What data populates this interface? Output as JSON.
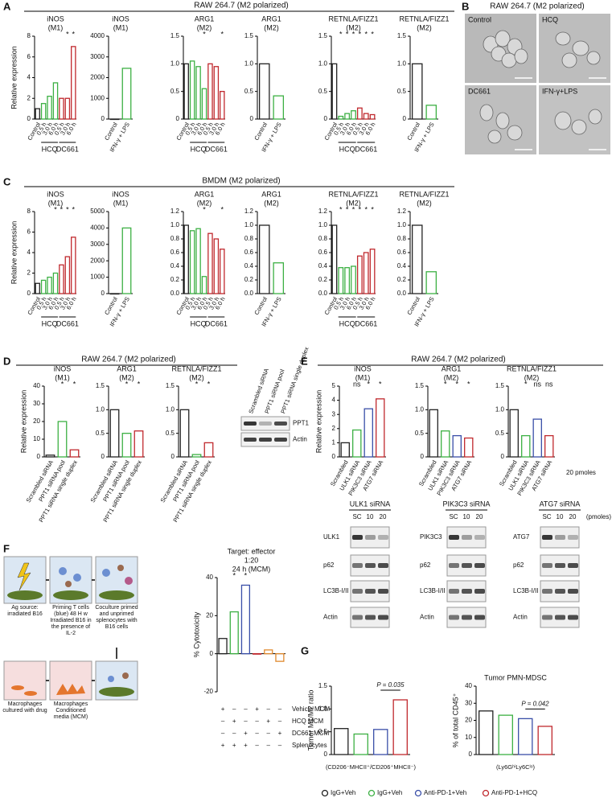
{
  "figure": {
    "panel_labels": [
      "A",
      "B",
      "C",
      "D",
      "E",
      "F",
      "G"
    ],
    "headers": {
      "a": "RAW 264.7 (M2 polarized)",
      "b": "RAW 264.7 (M2 polarized)",
      "c": "BMDM (M2 polarized)",
      "d": "RAW 264.7 (M2 polarized)",
      "e": "RAW 264.7 (M2 polarized)"
    },
    "micrographs": [
      "Control",
      "HCQ",
      "DC661",
      "IFN-γ+LPS"
    ],
    "blot_d": {
      "lanes": [
        "Scrambled siRNA",
        "PPT1 siRNA pool",
        "PPT1 siRNA single duplex"
      ],
      "bands": [
        "PPT1",
        "Actin"
      ]
    },
    "e_note": "20 pmoles",
    "blot_e": {
      "unit": "(pmoles)",
      "blots": [
        {
          "title": "ULK1 siRNA",
          "lanes": [
            "SC",
            "10",
            "20"
          ],
          "bands": [
            "ULK1",
            "p62",
            "LC3B-I/II",
            "Actin"
          ]
        },
        {
          "title": "PIK3C3 siRNA",
          "lanes": [
            "SC",
            "10",
            "20"
          ],
          "bands": [
            "PIK3C3",
            "p62",
            "LC3B-I/II",
            "Actin"
          ]
        },
        {
          "title": "ATG7 siRNA",
          "lanes": [
            "SC",
            "10",
            "20"
          ],
          "bands": [
            "ATG7",
            "p62",
            "LC3B-I/II",
            "Actin"
          ]
        }
      ]
    },
    "schematic": [
      "Ag source: irradiated B16",
      "Priming T cells (blue) 48 H w Irradiated B16 in the presence of IL-2",
      "Coculture primed and unprimed splenocytes with B16 cells",
      "Macrophages cultured with drug",
      "Macrophages Conditioned media (MCM)"
    ],
    "legend": [
      {
        "name": "IgG+Veh",
        "color": "#222222"
      },
      {
        "name": "IgG+Veh",
        "color": "#3cb043"
      },
      {
        "name": "Anti-PD-1+Veh",
        "color": "#3a4fa8"
      },
      {
        "name": "Anti-PD-1+HCQ",
        "color": "#c0282d"
      }
    ]
  },
  "chart_data": [
    {
      "type": "bar",
      "title": [
        "iNOS",
        "(M1)"
      ],
      "ylabel": "Relative expression",
      "categories": [
        "Control",
        "0.5 h",
        "3.0 h",
        "6.0 h",
        "0.5 h",
        "3.0 h",
        "6.0 h"
      ],
      "groups": [
        null,
        "HCQ",
        "HCQ",
        "HCQ",
        "DC661",
        "DC661",
        "DC661"
      ],
      "colors": [
        "#222222",
        "#3cb043",
        "#3cb043",
        "#3cb043",
        "#c0282d",
        "#c0282d",
        "#c0282d"
      ],
      "values": [
        1,
        1.5,
        2.2,
        3.5,
        2,
        2,
        7
      ],
      "significance": [
        null,
        null,
        null,
        null,
        null,
        "*",
        "*"
      ],
      "ylim": [
        0,
        8
      ],
      "yticks": [
        0,
        2,
        4,
        6,
        8
      ]
    },
    {
      "type": "bar",
      "title": [
        "iNOS",
        "(M1)"
      ],
      "categories": [
        "Control",
        "IFN-γ + LPS"
      ],
      "colors": [
        "#222222",
        "#3cb043"
      ],
      "values": [
        1,
        2450
      ],
      "ylim": [
        0,
        4000
      ],
      "yticks": [
        0,
        1000,
        2000,
        3000,
        4000
      ]
    },
    {
      "type": "bar",
      "title": [
        "ARG1",
        "(M2)"
      ],
      "categories": [
        "Control",
        "0.5 h",
        "3.0 h",
        "6.0 h",
        "0.5 h",
        "3.0 h",
        "6.0 h"
      ],
      "groups": [
        null,
        "HCQ",
        "HCQ",
        "HCQ",
        "DC661",
        "DC661",
        "DC661"
      ],
      "colors": [
        "#222222",
        "#3cb043",
        "#3cb043",
        "#3cb043",
        "#c0282d",
        "#c0282d",
        "#c0282d"
      ],
      "values": [
        1,
        1.05,
        0.95,
        0.55,
        1,
        0.95,
        0.5
      ],
      "significance": [
        null,
        null,
        null,
        "*",
        null,
        null,
        "*"
      ],
      "ylim": [
        0,
        1.5
      ],
      "yticks": [
        0,
        0.5,
        {
          "value": 1,
          "label": "1.0"
        },
        1.5
      ]
    },
    {
      "type": "bar",
      "title": [
        "ARG1",
        "(M2)"
      ],
      "categories": [
        "Control",
        "IFN-γ + LPS"
      ],
      "colors": [
        "#222222",
        "#3cb043"
      ],
      "values": [
        1,
        0.42
      ],
      "ylim": [
        0,
        1.5
      ],
      "yticks": [
        0,
        0.5,
        {
          "value": 1,
          "label": "1.0"
        },
        1.5
      ]
    },
    {
      "type": "bar",
      "title": [
        "RETNLA/FIZZ1",
        "(M2)"
      ],
      "categories": [
        "Control",
        "0.5 h",
        "3.0 h",
        "6.0 h",
        "0.5 h",
        "3.0 h",
        "6.0 h"
      ],
      "groups": [
        null,
        "HCQ",
        "HCQ",
        "HCQ",
        "DC661",
        "DC661",
        "DC661"
      ],
      "colors": [
        "#222222",
        "#3cb043",
        "#3cb043",
        "#3cb043",
        "#c0282d",
        "#c0282d",
        "#c0282d"
      ],
      "values": [
        1,
        0.05,
        0.1,
        0.15,
        0.2,
        0.1,
        0.08
      ],
      "significance": [
        null,
        "*",
        "*",
        "*",
        "*",
        "*",
        "*"
      ],
      "ylim": [
        0,
        1.5
      ],
      "yticks": [
        0,
        0.5,
        {
          "value": 1,
          "label": "1.0"
        },
        1.5
      ]
    },
    {
      "type": "bar",
      "title": [
        "RETNLA/FIZZ1",
        "(M2)"
      ],
      "categories": [
        "Control",
        "IFN-γ + LPS"
      ],
      "colors": [
        "#222222",
        "#3cb043"
      ],
      "values": [
        1,
        0.25
      ],
      "ylim": [
        0,
        1.5
      ],
      "yticks": [
        0,
        0.5,
        {
          "value": 1,
          "label": "1.0"
        },
        1.5
      ]
    },
    {
      "type": "bar",
      "title": [
        "iNOS",
        "(M1)"
      ],
      "ylabel": "Relative expression",
      "categories": [
        "Control",
        "0.5 h",
        "3.0 h",
        "6.0 h",
        "0.5 h",
        "3.0 h",
        "6.0 h"
      ],
      "groups": [
        null,
        "HCQ",
        "HCQ",
        "HCQ",
        "DC661",
        "DC661",
        "DC661"
      ],
      "colors": [
        "#222222",
        "#3cb043",
        "#3cb043",
        "#3cb043",
        "#c0282d",
        "#c0282d",
        "#c0282d"
      ],
      "values": [
        1,
        1.3,
        1.6,
        2,
        2.8,
        3.6,
        5.5
      ],
      "significance": [
        null,
        null,
        null,
        "*",
        "*",
        "*",
        "*"
      ],
      "ylim": [
        0,
        8
      ],
      "yticks": [
        0,
        2,
        4,
        6,
        8
      ]
    },
    {
      "type": "bar",
      "title": [
        "iNOS",
        "(M1)"
      ],
      "categories": [
        "Control",
        "IFN-γ + LPS"
      ],
      "colors": [
        "#222222",
        "#3cb043"
      ],
      "values": [
        1,
        4000
      ],
      "ylim": [
        0,
        5000
      ],
      "yticks": [
        0,
        1000,
        2000,
        3000,
        4000,
        5000
      ]
    },
    {
      "type": "bar",
      "title": [
        "ARG1",
        "(M2)"
      ],
      "categories": [
        "Control",
        "0.5 h",
        "3.0 h",
        "6.0 h",
        "0.5 h",
        "3.0 h",
        "6.0 h"
      ],
      "groups": [
        null,
        "HCQ",
        "HCQ",
        "HCQ",
        "DC661",
        "DC661",
        "DC661"
      ],
      "colors": [
        "#222222",
        "#3cb043",
        "#3cb043",
        "#3cb043",
        "#c0282d",
        "#c0282d",
        "#c0282d"
      ],
      "values": [
        1,
        0.92,
        0.95,
        0.25,
        0.88,
        0.8,
        0.65
      ],
      "significance": [
        null,
        null,
        null,
        "*",
        null,
        null,
        "*"
      ],
      "ylim": [
        0,
        1.2
      ],
      "yticks": [
        {
          "value": 0,
          "label": "0.0"
        },
        0.2,
        0.4,
        0.6,
        0.8,
        {
          "value": 1,
          "label": "1.0"
        },
        1.2
      ]
    },
    {
      "type": "bar",
      "title": [
        "ARG1",
        "(M2)"
      ],
      "categories": [
        "Control",
        "IFN-γ + LPS"
      ],
      "colors": [
        "#222222",
        "#3cb043"
      ],
      "values": [
        1,
        0.45
      ],
      "ylim": [
        0,
        1.2
      ],
      "yticks": [
        {
          "value": 0,
          "label": "0.0"
        },
        0.2,
        0.4,
        0.6,
        0.8,
        {
          "value": 1,
          "label": "1.0"
        },
        1.2
      ]
    },
    {
      "type": "bar",
      "title": [
        "RETNLA/FIZZ1",
        "(M2)"
      ],
      "categories": [
        "Control",
        "0.5 h",
        "3.0 h",
        "6.0 h",
        "0.5 h",
        "3.0 h",
        "6.0 h"
      ],
      "groups": [
        null,
        "HCQ",
        "HCQ",
        "HCQ",
        "DC661",
        "DC661",
        "DC661"
      ],
      "colors": [
        "#222222",
        "#3cb043",
        "#3cb043",
        "#3cb043",
        "#c0282d",
        "#c0282d",
        "#c0282d"
      ],
      "values": [
        1,
        0.38,
        0.38,
        0.4,
        0.55,
        0.6,
        0.65
      ],
      "significance": [
        null,
        "*",
        "*",
        "*",
        "*",
        "*",
        "*"
      ],
      "ylim": [
        0,
        1.2
      ],
      "yticks": [
        {
          "value": 0,
          "label": "0.0"
        },
        0.2,
        0.4,
        0.6,
        0.8,
        {
          "value": 1,
          "label": "1.0"
        },
        1.2
      ]
    },
    {
      "type": "bar",
      "title": [
        "RETNLA/FIZZ1",
        "(M2)"
      ],
      "categories": [
        "Control",
        "IFN-γ + LPS"
      ],
      "colors": [
        "#222222",
        "#3cb043"
      ],
      "values": [
        1,
        0.32
      ],
      "ylim": [
        0,
        1.2
      ],
      "yticks": [
        {
          "value": 0,
          "label": "0.0"
        },
        0.2,
        0.4,
        0.6,
        0.8,
        {
          "value": 1,
          "label": "1.0"
        },
        1.2
      ]
    },
    {
      "type": "bar",
      "title": [
        "iNOS",
        "(M1)"
      ],
      "ylabel": "Relative expression",
      "categories": [
        "Scrambled siRNA",
        "PPT1 siRNA pool",
        "PPT1 siRNA single duplex"
      ],
      "colors": [
        "#222222",
        "#3cb043",
        "#c0282d"
      ],
      "values": [
        1,
        20,
        4
      ],
      "significance": [
        null,
        "*",
        "*"
      ],
      "ylim": [
        0,
        40
      ],
      "yticks": [
        0,
        10,
        20,
        30,
        40
      ]
    },
    {
      "type": "bar",
      "title": [
        "ARG1",
        "(M2)"
      ],
      "categories": [
        "Scrambled siRNA",
        "PPT1 siRNA pool",
        "PPT1 siRNA single duplex"
      ],
      "colors": [
        "#222222",
        "#3cb043",
        "#c0282d"
      ],
      "values": [
        1,
        0.5,
        0.55
      ],
      "significance": [
        null,
        "*",
        "*"
      ],
      "ylim": [
        0,
        1.5
      ],
      "yticks": [
        0,
        0.5,
        {
          "value": 1,
          "label": "1.0"
        },
        1.5
      ]
    },
    {
      "type": "bar",
      "title": [
        "RETNLA/FIZZ1",
        "(M2)"
      ],
      "categories": [
        "Scrambled siRNA",
        "PPT1 siRNA pool",
        "PPT1 siRNA single duplex"
      ],
      "colors": [
        "#222222",
        "#3cb043",
        "#c0282d"
      ],
      "values": [
        1,
        0.05,
        0.3
      ],
      "significance": [
        null,
        "*",
        "*"
      ],
      "ylim": [
        0,
        1.5
      ],
      "yticks": [
        0,
        0.5,
        {
          "value": 1,
          "label": "1.0"
        },
        1.5
      ]
    },
    {
      "type": "bar",
      "title": [
        "iNOS",
        "(M1)"
      ],
      "ylabel": "Relative expression",
      "categories": [
        "Scrambled",
        "ULK1 siRNA",
        "PIK3C3 siRNA",
        "ATG7 siRNA"
      ],
      "colors": [
        "#222222",
        "#3cb043",
        "#3a4fa8",
        "#c0282d"
      ],
      "values": [
        1,
        1.9,
        3.4,
        4.1
      ],
      "significance": [
        null,
        "ns",
        "*",
        "*"
      ],
      "ylim": [
        0,
        5
      ],
      "yticks": [
        0,
        1,
        2,
        3,
        4,
        5
      ]
    },
    {
      "type": "bar",
      "title": [
        "ARG1",
        "(M2)"
      ],
      "categories": [
        "Scrambled",
        "ULK1 siRNA",
        "PIK3C3 siRNA",
        "ATG7 siRNA"
      ],
      "colors": [
        "#222222",
        "#3cb043",
        "#3a4fa8",
        "#c0282d"
      ],
      "values": [
        1,
        0.55,
        0.45,
        0.4
      ],
      "significance": [
        null,
        "*",
        "*",
        "*"
      ],
      "ylim": [
        0,
        1.5
      ],
      "yticks": [
        0,
        0.5,
        {
          "value": 1,
          "label": "1.0"
        },
        1.5
      ]
    },
    {
      "type": "bar",
      "title": [
        "RETNLA/FIZZ1",
        "(M2)"
      ],
      "categories": [
        "Scrambled",
        "ULK1 siRNA",
        "PIK3C3 siRNA",
        "ATG7 siRNA"
      ],
      "colors": [
        "#222222",
        "#3cb043",
        "#3a4fa8",
        "#c0282d"
      ],
      "values": [
        1,
        0.45,
        0.8,
        0.45
      ],
      "significance": [
        null,
        "*",
        "ns",
        "ns"
      ],
      "ylim": [
        0,
        1.5
      ],
      "yticks": [
        0,
        0.5,
        {
          "value": 1,
          "label": "1.0"
        },
        1.5
      ]
    },
    {
      "type": "bar",
      "title": [
        "Target: effector",
        "1:20",
        "24 h (MCM)"
      ],
      "ylabel": "% Cytotoxicity",
      "categories": [
        null,
        null,
        null,
        null,
        null,
        null
      ],
      "colors": [
        "#222222",
        "#3cb043",
        "#3a4fa8",
        "#c0282d",
        "#e08a2e",
        "#e08a2e"
      ],
      "values": [
        8,
        22,
        36,
        0,
        2,
        -4
      ],
      "significance": [
        null,
        "*",
        "*",
        null,
        null,
        null
      ],
      "ylim": [
        -20,
        40
      ],
      "yticks": [
        -20,
        0,
        20,
        40
      ],
      "conditions": [
        {
          "name": "Vehicle MCM",
          "marks": [
            "+",
            "–",
            "–",
            "+",
            "–",
            "–"
          ]
        },
        {
          "name": "HCQ MCM",
          "marks": [
            "–",
            "+",
            "–",
            "–",
            "+",
            "–"
          ]
        },
        {
          "name": "DC661 MCM",
          "marks": [
            "–",
            "–",
            "+",
            "–",
            "–",
            "+"
          ]
        },
        {
          "name": "Splenocytes",
          "marks": [
            "+",
            "+",
            "+",
            "–",
            "–",
            "–"
          ]
        }
      ]
    },
    {
      "type": "bar",
      "ylabel": "Tumor M1/M2 ratio",
      "xlabel": "(CD206⁻MHCII⁺/CD206⁺MHCII⁻)",
      "categories": [
        null,
        null,
        null,
        null
      ],
      "colors": [
        "#222222",
        "#3cb043",
        "#3a4fa8",
        "#c0282d"
      ],
      "values": [
        0.57,
        0.45,
        0.55,
        1.2
      ],
      "comparisons": [
        {
          "label": "P = 0.035",
          "between": [
            2,
            3
          ]
        }
      ],
      "ylim": [
        0,
        1.5
      ],
      "yticks": [
        0,
        0.5,
        {
          "value": 1,
          "label": "1.0"
        },
        1.5
      ]
    },
    {
      "type": "bar",
      "title": [
        "Tumor PMN-MDSC"
      ],
      "ylabel": "% of total CD45⁺",
      "xlabel": "(Ly6GʰⁱLy6Cˡᵒ)",
      "categories": [
        null,
        null,
        null,
        null
      ],
      "colors": [
        "#222222",
        "#3cb043",
        "#3a4fa8",
        "#c0282d"
      ],
      "values": [
        25.5,
        23,
        21,
        16.5
      ],
      "comparisons": [
        {
          "label": "P = 0.042",
          "between": [
            2,
            3
          ]
        }
      ],
      "ylim": [
        0,
        40
      ],
      "yticks": [
        0,
        10,
        20,
        30,
        40
      ]
    }
  ]
}
